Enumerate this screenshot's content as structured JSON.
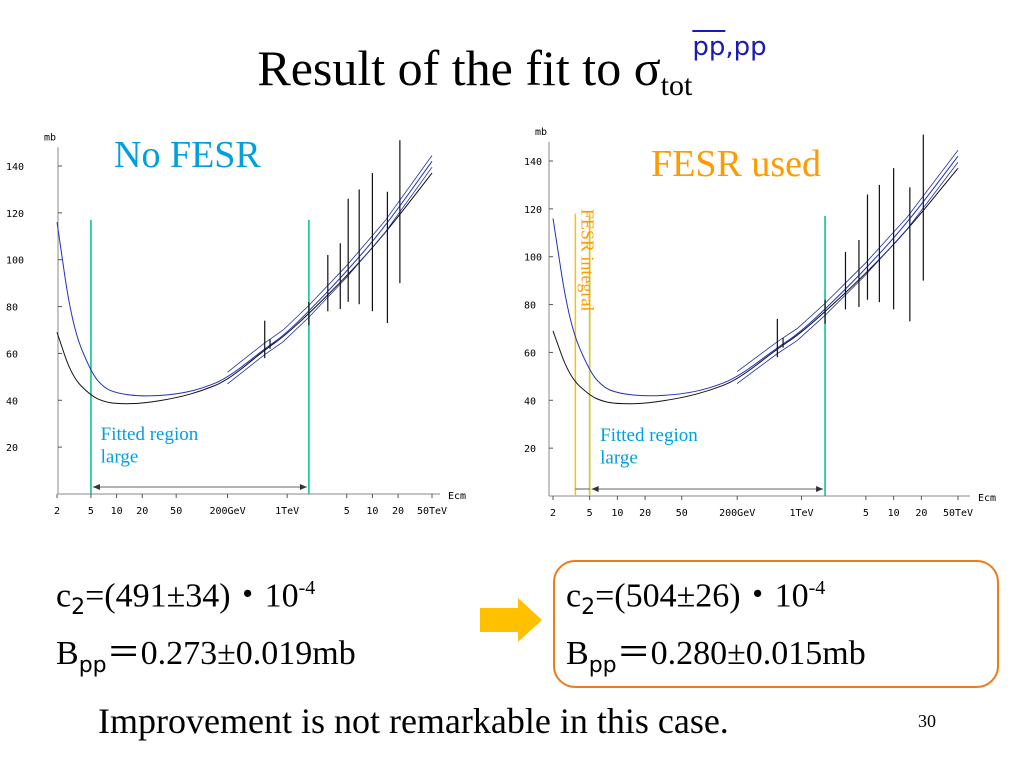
{
  "title": {
    "main": "Result of the fit to σ",
    "sub": "tot",
    "sup_bar": "pp",
    "sup_rest": ",pp"
  },
  "colors": {
    "blue_label": "#00a0e0",
    "orange_label": "#ff9a00",
    "green_line": "#00c08a",
    "fesr_line": "#ffc000",
    "band": "#2030a0",
    "box": "#f07a1a",
    "arrow": "#ffc000"
  },
  "chart_data": [
    {
      "type": "line",
      "panel_label": "No FESR",
      "yunit": "mb",
      "xlabel": "Ecm",
      "ylim": [
        10,
        150
      ],
      "yticks": [
        20,
        40,
        60,
        80,
        100,
        120,
        140
      ],
      "xtick_labels": [
        "2",
        "5",
        "10",
        "20",
        "50",
        "200GeV",
        "1TeV",
        "5",
        "10",
        "20",
        "50TeV"
      ],
      "xtick_values_gev": [
        2,
        5,
        10,
        20,
        50,
        200,
        1000,
        5000,
        10000,
        20000,
        50000
      ],
      "series": [
        {
          "values_gev": [
            2,
            3,
            5,
            7,
            10,
            20,
            50,
            100,
            200,
            546,
            900,
            1800,
            5000,
            14000,
            50000
          ],
          "values_mb": [
            69,
            50,
            42,
            39.5,
            38.5,
            38.6,
            41,
            44,
            48.5,
            61.5,
            67,
            77,
            93,
            111,
            137
          ]
        },
        {
          "values_gev": [
            2,
            3,
            5,
            7,
            10,
            20,
            50,
            100,
            200,
            546,
            900,
            1800,
            5000,
            14000,
            50000
          ],
          "values_mb": [
            116,
            72,
            52,
            45.5,
            43,
            41.6,
            42.5,
            45,
            49.5,
            62,
            67.5,
            78,
            95,
            114,
            142
          ]
        }
      ],
      "errors": [
        {
          "x_gev": 546,
          "y": 62,
          "lo": 58,
          "hi": 74
        },
        {
          "x_gev": 630,
          "y": 63,
          "lo": 62,
          "hi": 66
        },
        {
          "x_gev": 1800,
          "y": 77,
          "lo": 72,
          "hi": 82
        },
        {
          "x_gev": 3000,
          "y": 88,
          "lo": 78,
          "hi": 102
        },
        {
          "x_gev": 4200,
          "y": 92,
          "lo": 79,
          "hi": 107
        },
        {
          "x_gev": 5200,
          "y": 101,
          "lo": 82,
          "hi": 126
        },
        {
          "x_gev": 7000,
          "y": 108,
          "lo": 81,
          "hi": 130
        },
        {
          "x_gev": 10000,
          "y": 113,
          "lo": 78,
          "hi": 137
        },
        {
          "x_gev": 15000,
          "y": 106,
          "lo": 73,
          "hi": 129
        },
        {
          "x_gev": 21000,
          "y": 121,
          "lo": 90,
          "hi": 151
        }
      ],
      "vlines_gev": [
        5,
        1800
      ],
      "range_note_line1": "Fitted region",
      "range_note_line2": "large"
    },
    {
      "type": "line",
      "panel_label": "FESR used",
      "fesr_label": "FESR integral",
      "yunit": "mb",
      "xlabel": "Ecm",
      "ylim": [
        10,
        150
      ],
      "yticks": [
        20,
        40,
        60,
        80,
        100,
        120,
        140
      ],
      "xtick_labels": [
        "2",
        "5",
        "10",
        "20",
        "50",
        "200GeV",
        "1TeV",
        "5",
        "10",
        "20",
        "50TeV"
      ],
      "xtick_values_gev": [
        2,
        5,
        10,
        20,
        50,
        200,
        1000,
        5000,
        10000,
        20000,
        50000
      ],
      "series": [
        {
          "values_gev": [
            2,
            3,
            5,
            7,
            10,
            20,
            50,
            100,
            200,
            546,
            900,
            1800,
            5000,
            14000,
            50000
          ],
          "values_mb": [
            69,
            50,
            42,
            39.5,
            38.5,
            38.6,
            41,
            44,
            48.5,
            61.5,
            67,
            77,
            93,
            111,
            137
          ]
        },
        {
          "values_gev": [
            2,
            3,
            5,
            7,
            10,
            20,
            50,
            100,
            200,
            546,
            900,
            1800,
            5000,
            14000,
            50000
          ],
          "values_mb": [
            116,
            72,
            52,
            45.5,
            43,
            41.6,
            42.5,
            45,
            49.5,
            62,
            67.5,
            78,
            95,
            114,
            142
          ]
        }
      ],
      "errors": [
        {
          "x_gev": 546,
          "y": 62,
          "lo": 58,
          "hi": 74
        },
        {
          "x_gev": 630,
          "y": 63,
          "lo": 62,
          "hi": 66
        },
        {
          "x_gev": 1800,
          "y": 77,
          "lo": 72,
          "hi": 82
        },
        {
          "x_gev": 3000,
          "y": 88,
          "lo": 78,
          "hi": 102
        },
        {
          "x_gev": 4200,
          "y": 92,
          "lo": 79,
          "hi": 107
        },
        {
          "x_gev": 5200,
          "y": 101,
          "lo": 82,
          "hi": 126
        },
        {
          "x_gev": 7000,
          "y": 108,
          "lo": 81,
          "hi": 130
        },
        {
          "x_gev": 10000,
          "y": 113,
          "lo": 78,
          "hi": 137
        },
        {
          "x_gev": 15000,
          "y": 106,
          "lo": 73,
          "hi": 129
        },
        {
          "x_gev": 21000,
          "y": 121,
          "lo": 90,
          "hi": 151
        }
      ],
      "vlines_gev": [
        5,
        1800
      ],
      "fesr_lines_gev": [
        3.5,
        5
      ],
      "range_note_line1": "Fitted region",
      "range_note_line2": "large"
    }
  ],
  "results": {
    "left": {
      "c_label": "c",
      "c_sub": "2",
      "c_value": "=(491±34)・10",
      "c_exp": "-4",
      "b_label": "B",
      "b_sub": "pp",
      "b_value": "＝0.273±0.019mb"
    },
    "right": {
      "c_label": "c",
      "c_sub": "2",
      "c_value": "=(504±26)・10",
      "c_exp": "-4",
      "b_label": "B",
      "b_sub": "pp",
      "b_value": "＝0.280±0.015mb"
    }
  },
  "footer": "Improvement is not remarkable in this case.",
  "page_number": "30"
}
